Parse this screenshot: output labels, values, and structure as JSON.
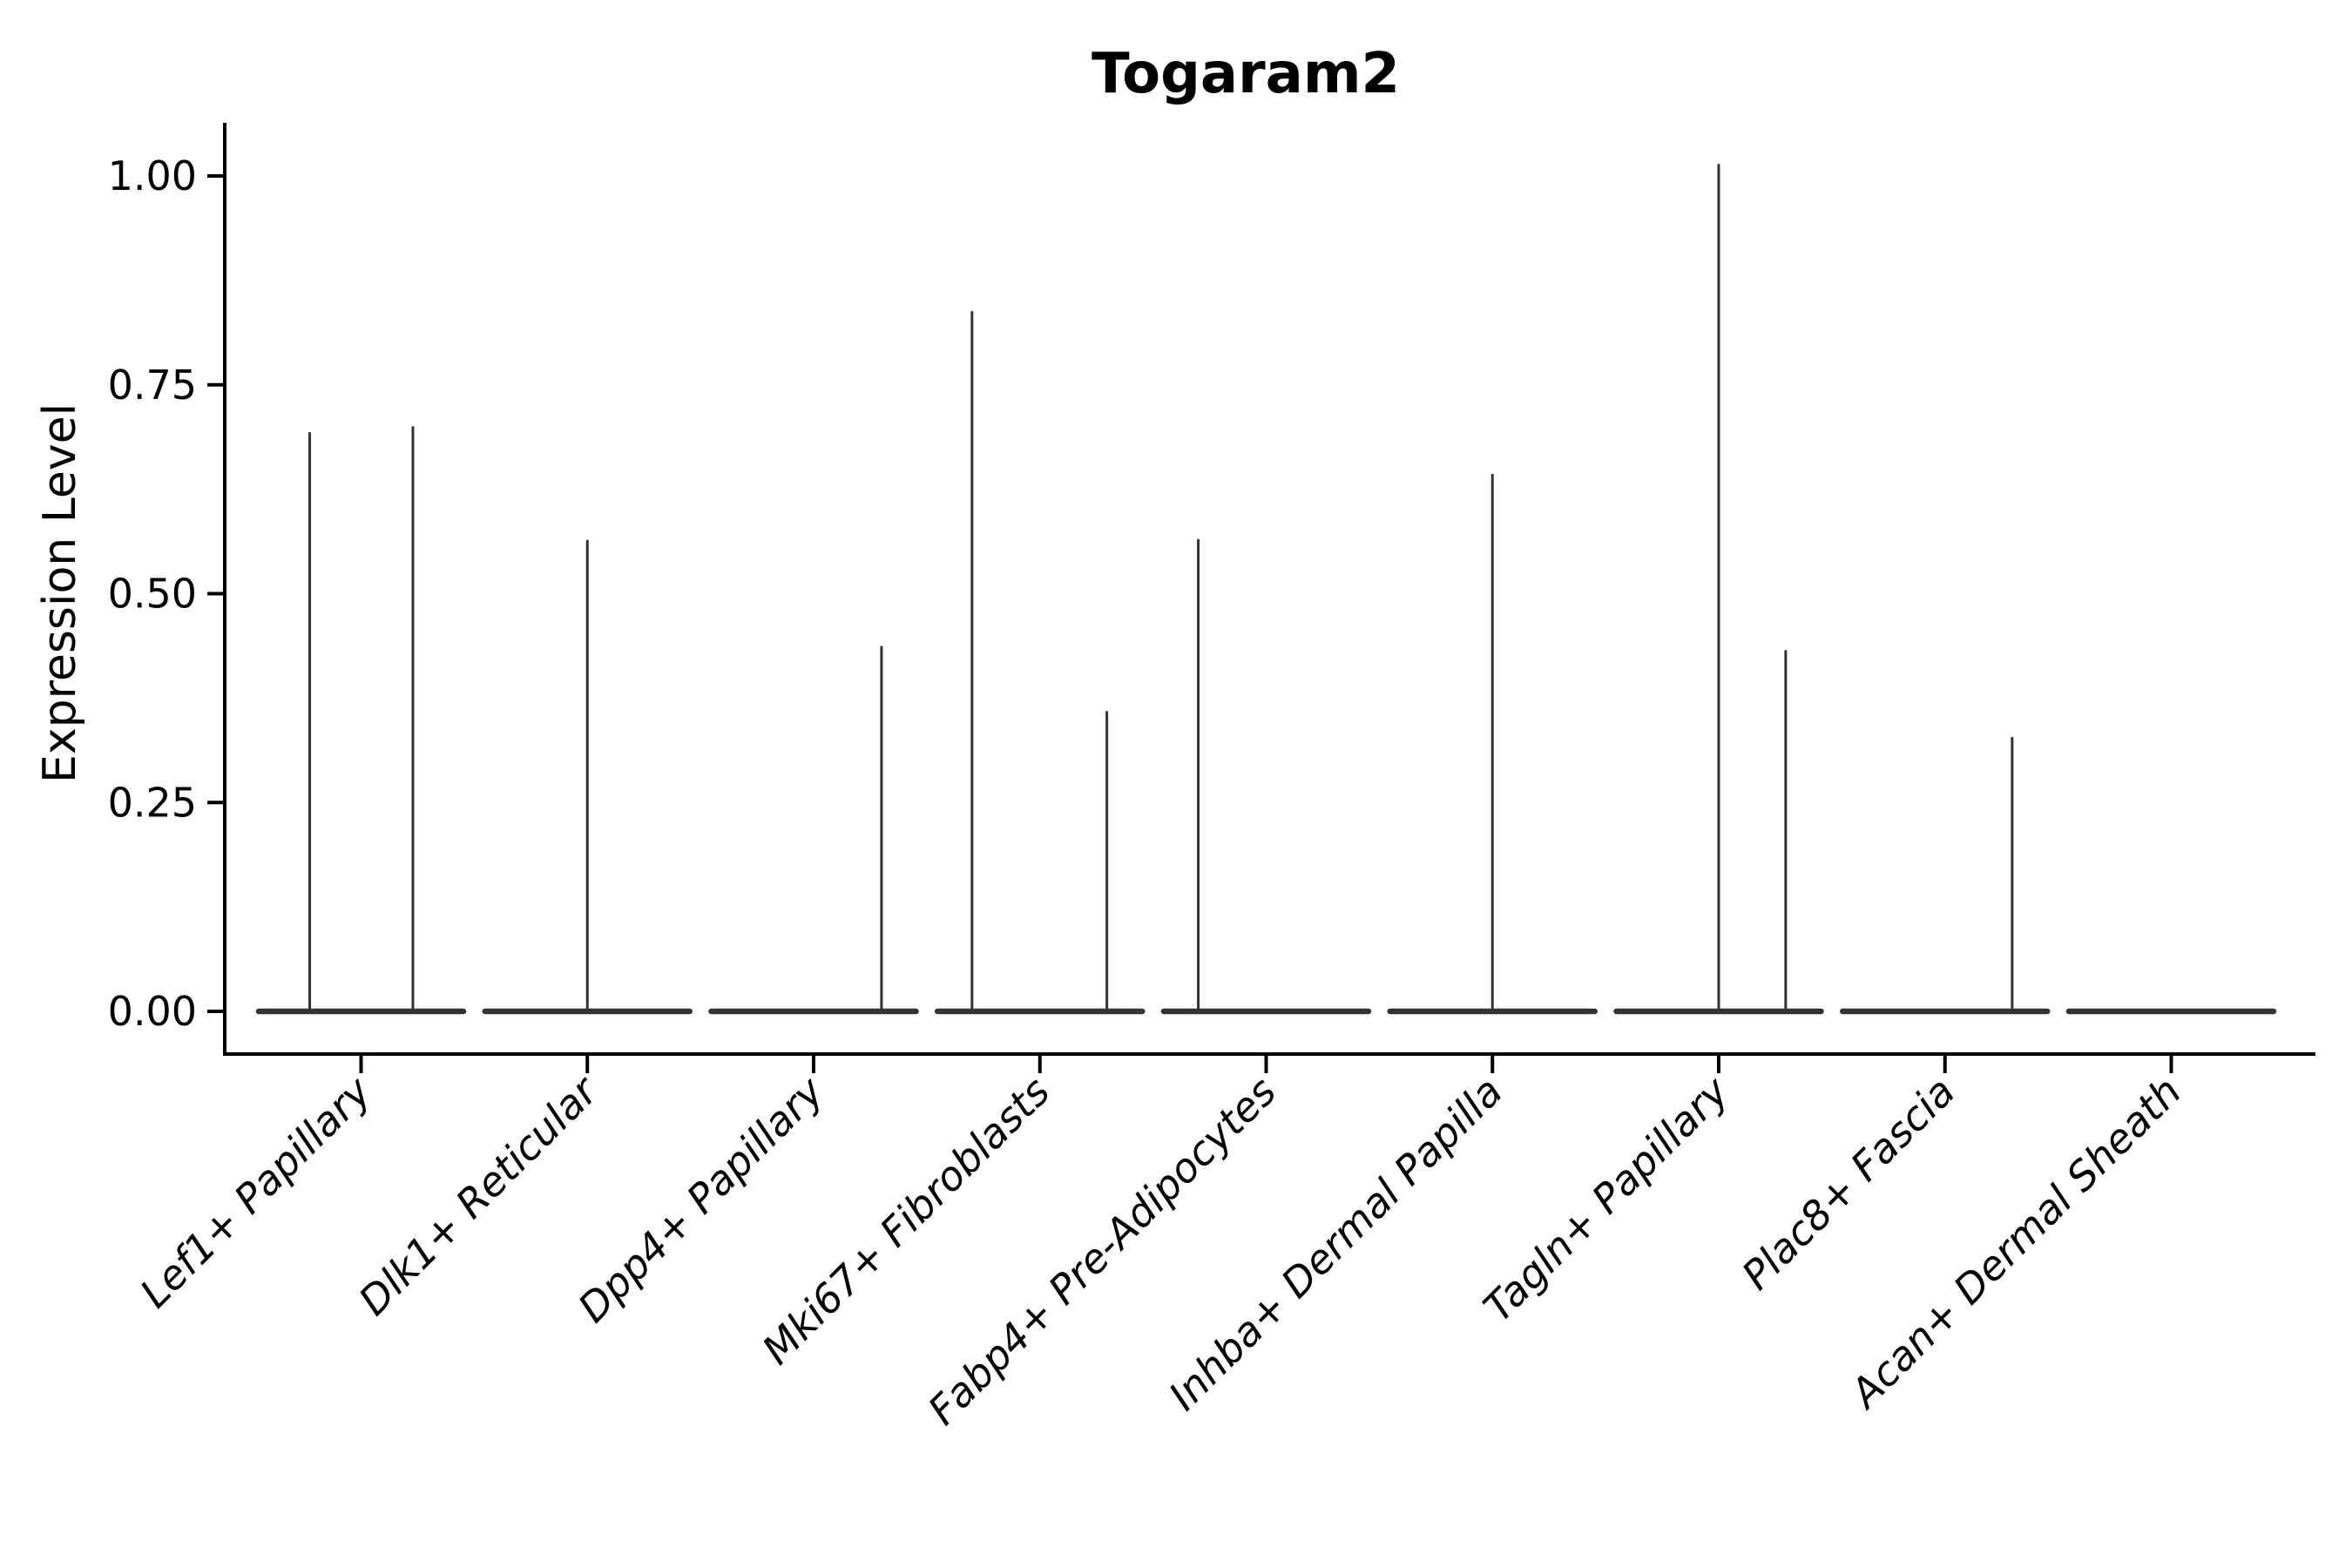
{
  "chart_data": {
    "type": "violin",
    "title": "Togaram2",
    "xlabel": "",
    "ylabel": "Expression Level",
    "categories": [
      "Lef1+ Papillary",
      "Dlk1+ Reticular",
      "Dpp4+ Papillary",
      "Mki67+ Fibroblasts",
      "Fabp4+ Pre-Adipocytes",
      "Inhba+ Dermal Papilla",
      "Tagln+ Papillary",
      "Plac8+ Fascia",
      "Acan+ Dermal Sheath"
    ],
    "yticks": [
      0.0,
      0.25,
      0.5,
      0.75,
      1.0
    ],
    "ytick_labels": [
      "0.00",
      "0.25",
      "0.50",
      "0.75",
      "1.00"
    ],
    "ylim": [
      -0.05,
      1.06
    ],
    "grid": false,
    "legend": "none",
    "line_color": "#333333",
    "axis_color": "#000000",
    "violins": [
      {
        "category": "Lef1+ Papillary",
        "base_halfwidth": 0.4525,
        "spikes": [
          {
            "offset": -0.227,
            "value": 0.692
          },
          {
            "offset": 0.229,
            "value": 0.699
          }
        ]
      },
      {
        "category": "Dlk1+ Reticular",
        "base_halfwidth": 0.4525,
        "spikes": [
          {
            "offset": 0.0,
            "value": 0.563
          }
        ]
      },
      {
        "category": "Dpp4+ Papillary",
        "base_halfwidth": 0.4525,
        "spikes": [
          {
            "offset": 0.3,
            "value": 0.436
          }
        ]
      },
      {
        "category": "Mki67+ Fibroblasts",
        "base_halfwidth": 0.4525,
        "spikes": [
          {
            "offset": -0.3,
            "value": 0.837
          },
          {
            "offset": 0.296,
            "value": 0.358
          }
        ]
      },
      {
        "category": "Fabp4+ Pre-Adipocytes",
        "base_halfwidth": 0.4525,
        "spikes": [
          {
            "offset": -0.3,
            "value": 0.564
          }
        ]
      },
      {
        "category": "Inhba+ Dermal Papilla",
        "base_halfwidth": 0.4525,
        "spikes": [
          {
            "offset": 0.0,
            "value": 0.642
          }
        ]
      },
      {
        "category": "Tagln+ Papillary",
        "base_halfwidth": 0.4525,
        "spikes": [
          {
            "offset": 0.0,
            "value": 1.013
          },
          {
            "offset": 0.296,
            "value": 0.431
          }
        ]
      },
      {
        "category": "Plac8+ Fascia",
        "base_halfwidth": 0.4525,
        "spikes": [
          {
            "offset": 0.297,
            "value": 0.327
          }
        ]
      },
      {
        "category": "Acan+ Dermal Sheath",
        "base_halfwidth": 0.4525,
        "spikes": []
      }
    ]
  }
}
